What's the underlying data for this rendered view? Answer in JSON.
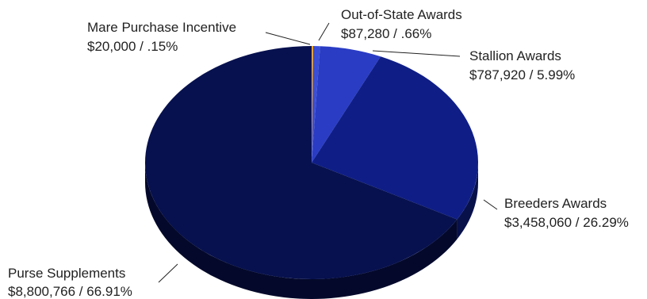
{
  "chart_data": {
    "type": "pie",
    "style": "3d",
    "slices": [
      {
        "label": "Mare Purchase Incentive",
        "value_label": "$20,000 / .15%",
        "value": 20000,
        "percent": 0.15,
        "color": "#f5a623"
      },
      {
        "label": "Out-of-State Awards",
        "value_label": "$87,280 / .66%",
        "value": 87280,
        "percent": 0.66,
        "color": "#3b4fd6"
      },
      {
        "label": "Stallion Awards",
        "value_label": "$787,920 / 5.99%",
        "value": 787920,
        "percent": 5.99,
        "color": "#2a3cc4"
      },
      {
        "label": "Breeders Awards",
        "value_label": "$3,458,060 / 26.29%",
        "value": 3458060,
        "percent": 26.29,
        "color": "#0f1e86"
      },
      {
        "label": "Purse Supplements",
        "value_label": "$8,800,766 / 66.91%",
        "value": 8800766,
        "percent": 66.91,
        "color": "#07114f"
      }
    ]
  }
}
